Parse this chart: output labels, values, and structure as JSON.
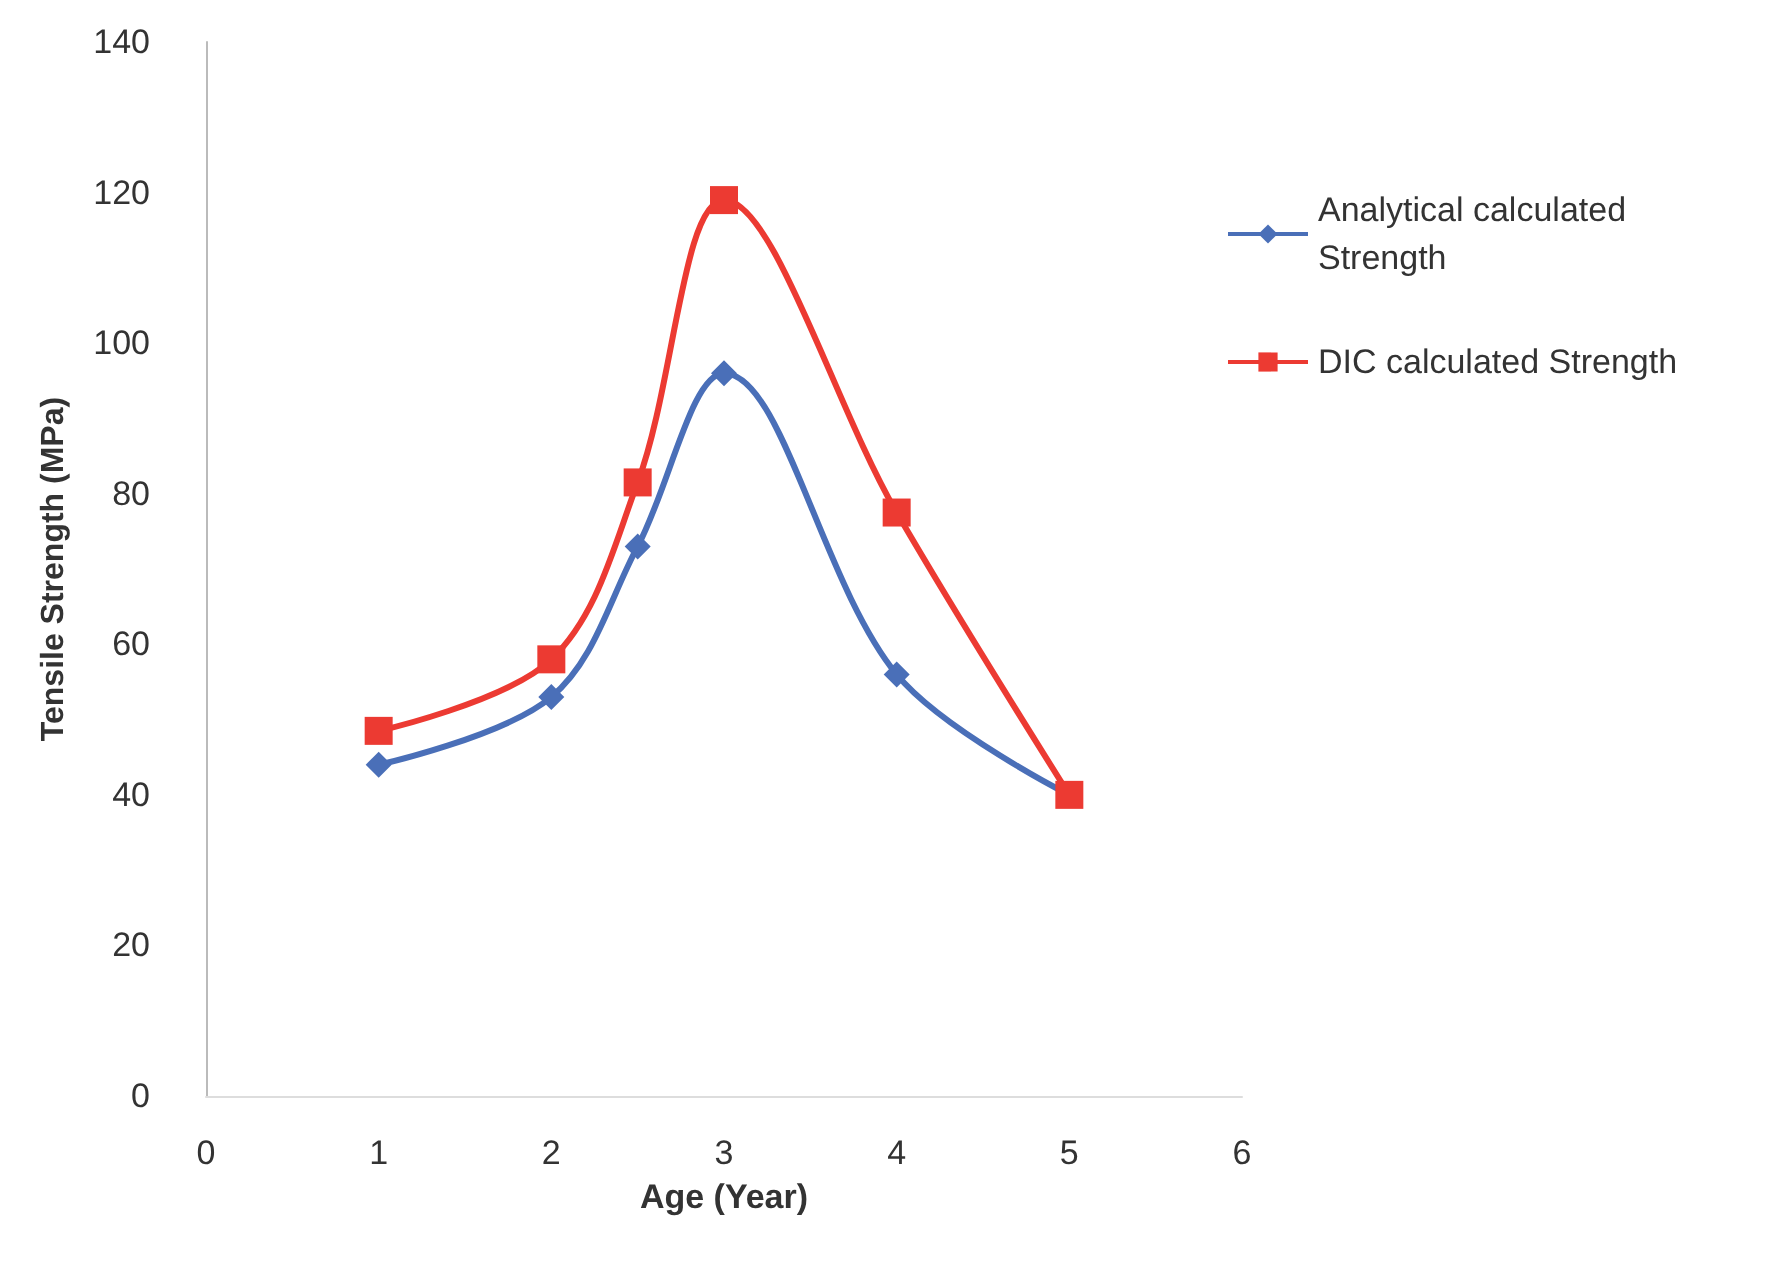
{
  "chart_data": {
    "type": "line",
    "xlabel": "Age (Year)",
    "ylabel": "Tensile Strength (MPa)",
    "xlim": [
      0,
      6
    ],
    "xticks": [
      0,
      1,
      2,
      3,
      4,
      5,
      6
    ],
    "ylim": [
      0,
      140
    ],
    "yticks": [
      0,
      20,
      40,
      60,
      80,
      100,
      120,
      140
    ],
    "x": [
      1,
      2,
      2.5,
      3,
      4,
      5
    ],
    "series": [
      {
        "name": "Analytical calculated Strength",
        "color": "#4a6fb8",
        "marker": "diamond",
        "values": [
          44,
          53,
          73,
          96,
          56,
          40
        ]
      },
      {
        "name": "DIC calculated Strength",
        "color": "#ec3a32",
        "marker": "square",
        "values": [
          48.5,
          58,
          81.5,
          119,
          77.5,
          40
        ]
      }
    ],
    "grid": false,
    "legend": "right",
    "line_style": "solid"
  }
}
